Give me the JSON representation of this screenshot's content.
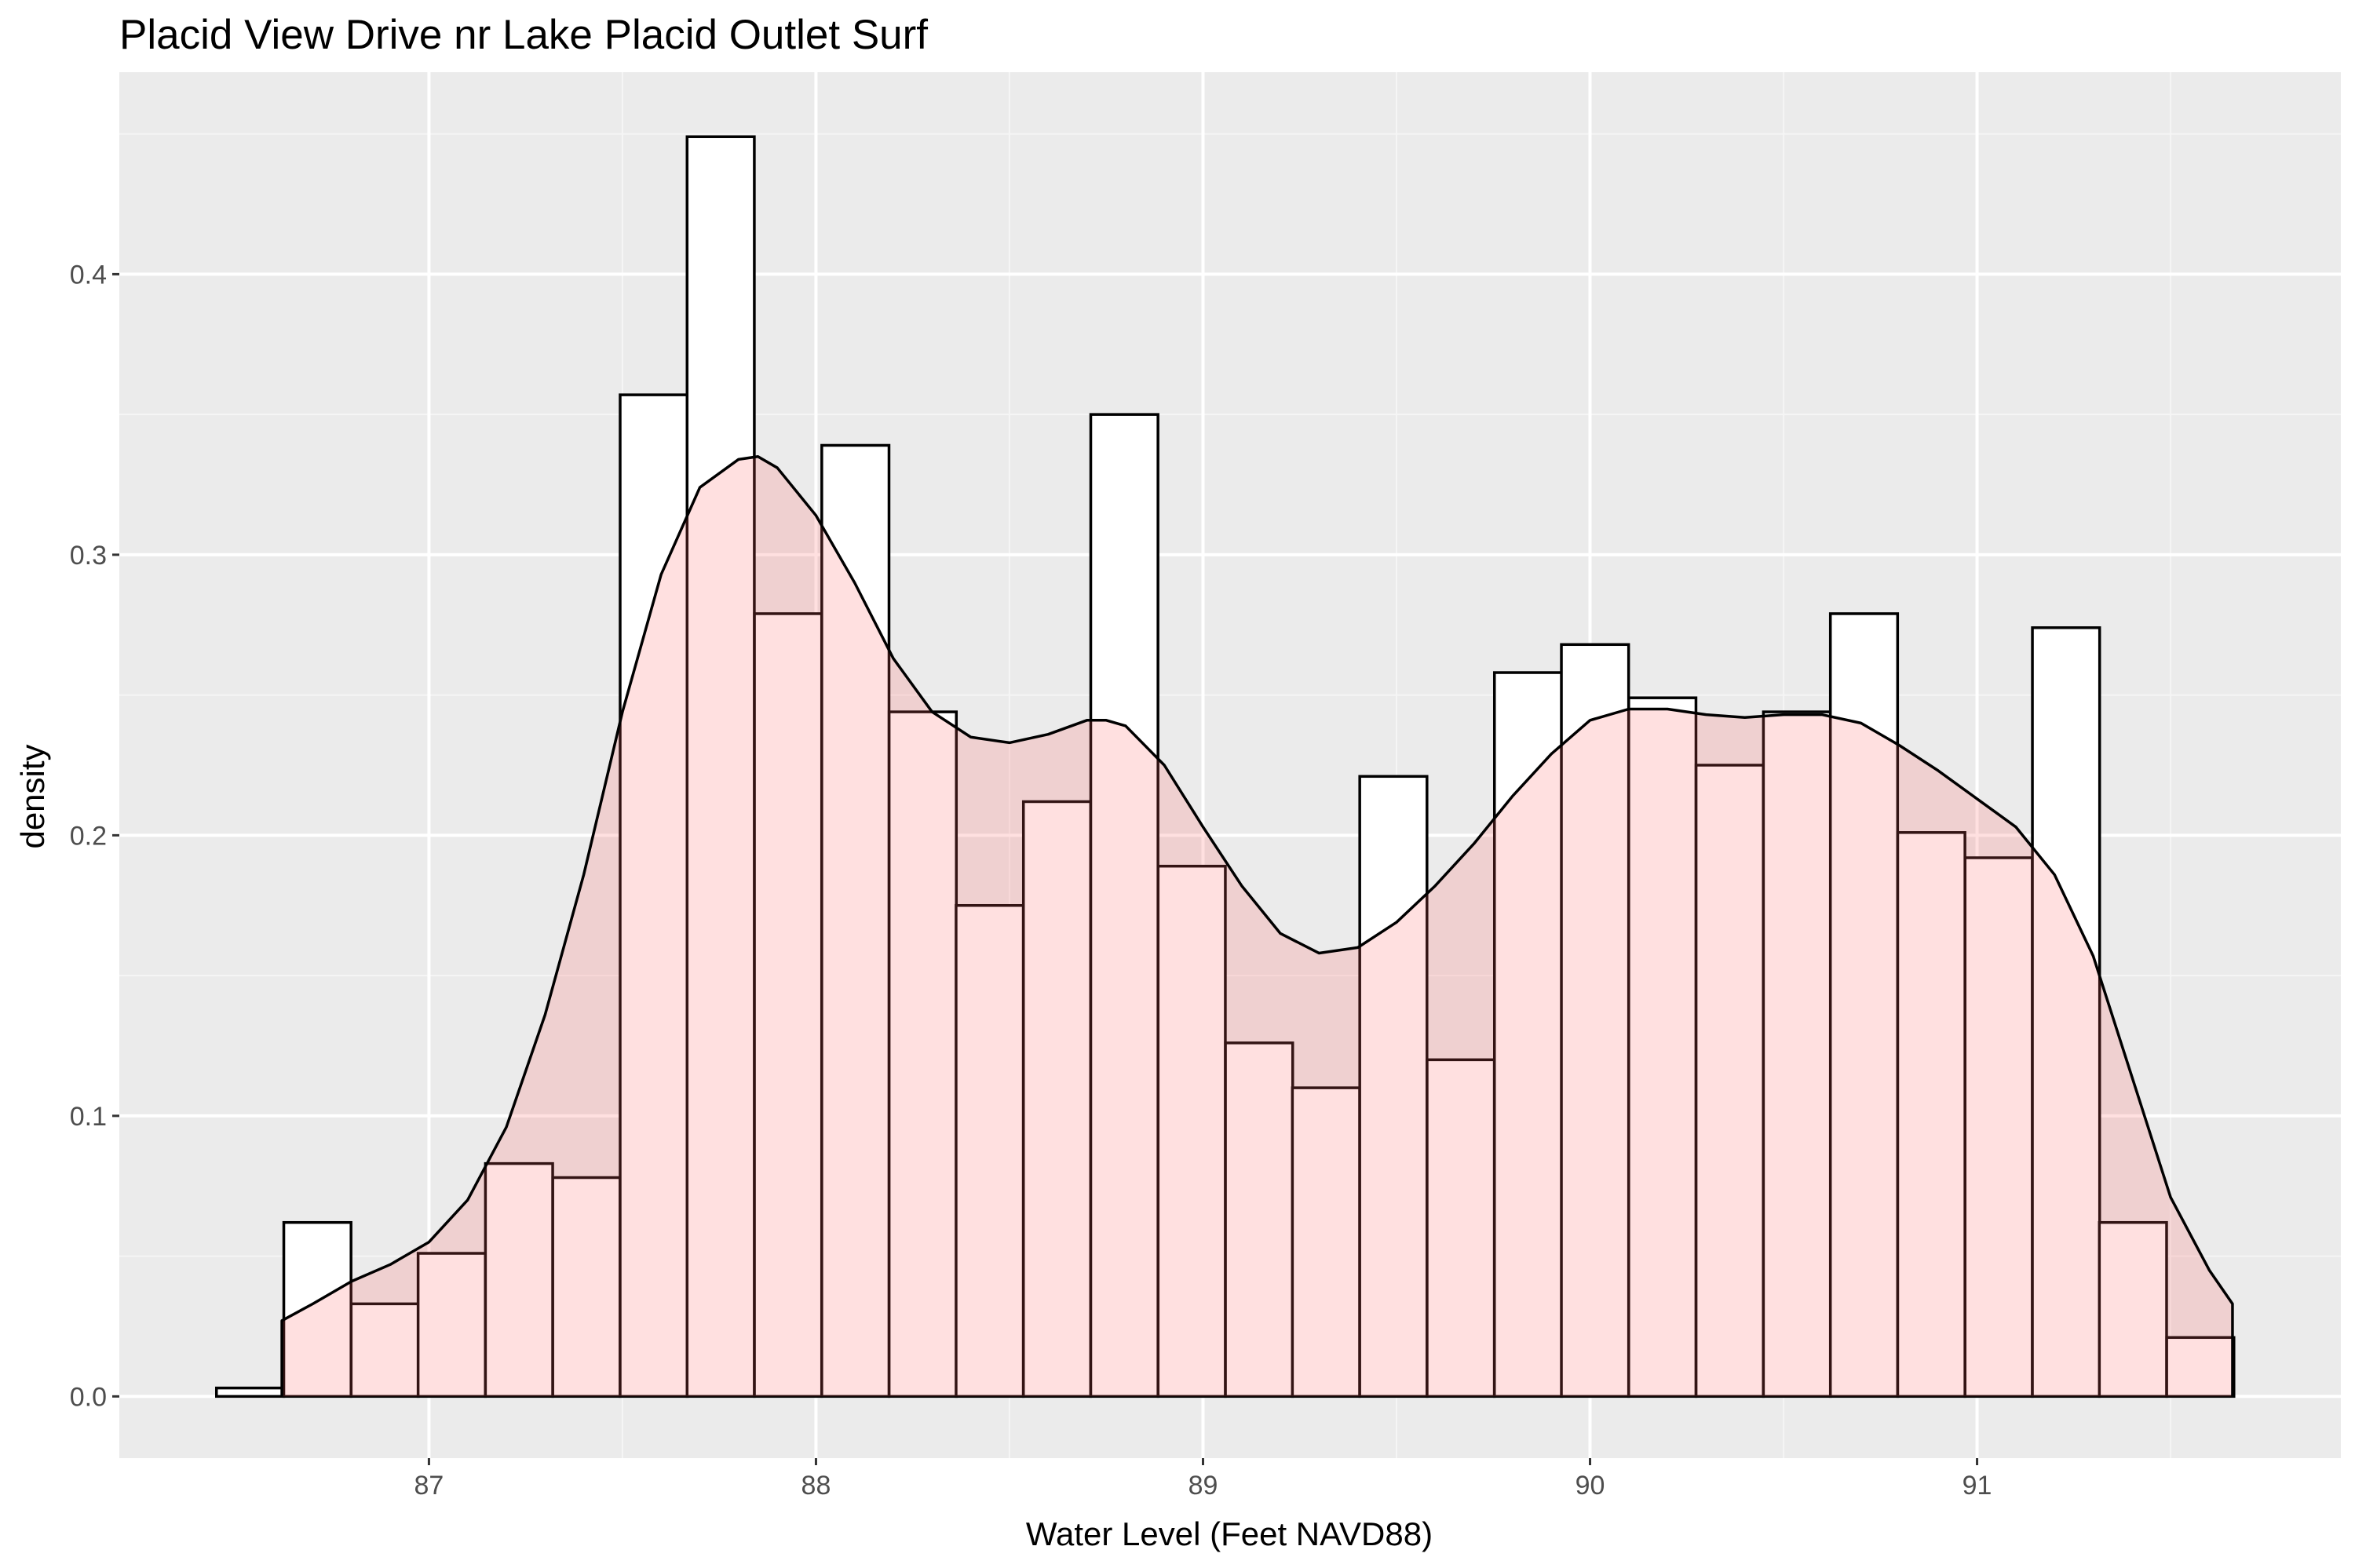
{
  "chart_data": {
    "type": "histogram",
    "title": "Placid View Drive nr Lake Placid Outlet Surf",
    "xlabel": "Water Level (Feet NAVD88)",
    "ylabel": "density",
    "xlim": [
      86.2,
      91.94
    ],
    "ylim": [
      -0.022,
      0.472
    ],
    "x_ticks": [
      87,
      88,
      89,
      90,
      91
    ],
    "x_tick_labels": [
      "87",
      "88",
      "89",
      "90",
      "91"
    ],
    "y_ticks": [
      0.0,
      0.1,
      0.2,
      0.3,
      0.4
    ],
    "y_tick_labels": [
      "0.0",
      "0.1",
      "0.2",
      "0.3",
      "0.4"
    ],
    "x_minor_ticks": [
      87.5,
      88.5,
      89.5,
      90.5,
      91.5
    ],
    "y_minor_ticks": [
      0.05,
      0.15,
      0.25,
      0.35,
      0.45
    ],
    "grid": true,
    "series": [
      {
        "layer": "histogram",
        "bin_width": 0.1737,
        "bins": [
          {
            "start": 86.451,
            "density": 0.003
          },
          {
            "start": 86.625,
            "density": 0.062
          },
          {
            "start": 86.799,
            "density": 0.033
          },
          {
            "start": 86.972,
            "density": 0.051
          },
          {
            "start": 87.146,
            "density": 0.083
          },
          {
            "start": 87.32,
            "density": 0.078
          },
          {
            "start": 87.494,
            "density": 0.357
          },
          {
            "start": 87.667,
            "density": 0.449
          },
          {
            "start": 87.841,
            "density": 0.279
          },
          {
            "start": 88.015,
            "density": 0.339
          },
          {
            "start": 88.189,
            "density": 0.244
          },
          {
            "start": 88.362,
            "density": 0.175
          },
          {
            "start": 88.536,
            "density": 0.212
          },
          {
            "start": 88.71,
            "density": 0.35
          },
          {
            "start": 88.884,
            "density": 0.189
          },
          {
            "start": 89.058,
            "density": 0.126
          },
          {
            "start": 89.231,
            "density": 0.11
          },
          {
            "start": 89.405,
            "density": 0.221
          },
          {
            "start": 89.579,
            "density": 0.12
          },
          {
            "start": 89.753,
            "density": 0.258
          },
          {
            "start": 89.926,
            "density": 0.268
          },
          {
            "start": 90.1,
            "density": 0.249
          },
          {
            "start": 90.274,
            "density": 0.225
          },
          {
            "start": 90.448,
            "density": 0.244
          },
          {
            "start": 90.621,
            "density": 0.279
          },
          {
            "start": 90.795,
            "density": 0.201
          },
          {
            "start": 90.969,
            "density": 0.192
          },
          {
            "start": 91.143,
            "density": 0.274
          },
          {
            "start": 91.316,
            "density": 0.062
          },
          {
            "start": 91.49,
            "density": 0.021
          }
        ]
      },
      {
        "layer": "density",
        "x": [
          86.62,
          86.7,
          86.8,
          86.9,
          87.0,
          87.1,
          87.2,
          87.3,
          87.4,
          87.5,
          87.6,
          87.7,
          87.8,
          87.85,
          87.9,
          88.0,
          88.1,
          88.2,
          88.3,
          88.4,
          88.5,
          88.6,
          88.7,
          88.75,
          88.8,
          88.9,
          89.0,
          89.1,
          89.2,
          89.3,
          89.4,
          89.5,
          89.6,
          89.7,
          89.8,
          89.9,
          90.0,
          90.1,
          90.2,
          90.3,
          90.4,
          90.5,
          90.6,
          90.7,
          90.8,
          90.9,
          91.0,
          91.1,
          91.2,
          91.3,
          91.4,
          91.5,
          91.6,
          91.66
        ],
        "y": [
          0.027,
          0.033,
          0.041,
          0.047,
          0.055,
          0.07,
          0.096,
          0.136,
          0.186,
          0.244,
          0.293,
          0.324,
          0.334,
          0.335,
          0.331,
          0.314,
          0.29,
          0.263,
          0.244,
          0.235,
          0.233,
          0.236,
          0.241,
          0.241,
          0.239,
          0.225,
          0.203,
          0.182,
          0.165,
          0.158,
          0.16,
          0.169,
          0.182,
          0.197,
          0.214,
          0.229,
          0.241,
          0.245,
          0.245,
          0.243,
          0.242,
          0.243,
          0.243,
          0.24,
          0.232,
          0.223,
          0.213,
          0.203,
          0.186,
          0.157,
          0.114,
          0.071,
          0.045,
          0.033
        ]
      }
    ],
    "colors": {
      "panel_background": "#ebebeb",
      "grid_major": "#ffffff",
      "grid_minor": "#f5f5f5",
      "histogram_fill": "#ffffff",
      "density_fill": "#ff6666",
      "density_fill_alpha": 0.2,
      "outline": "#000000"
    }
  }
}
